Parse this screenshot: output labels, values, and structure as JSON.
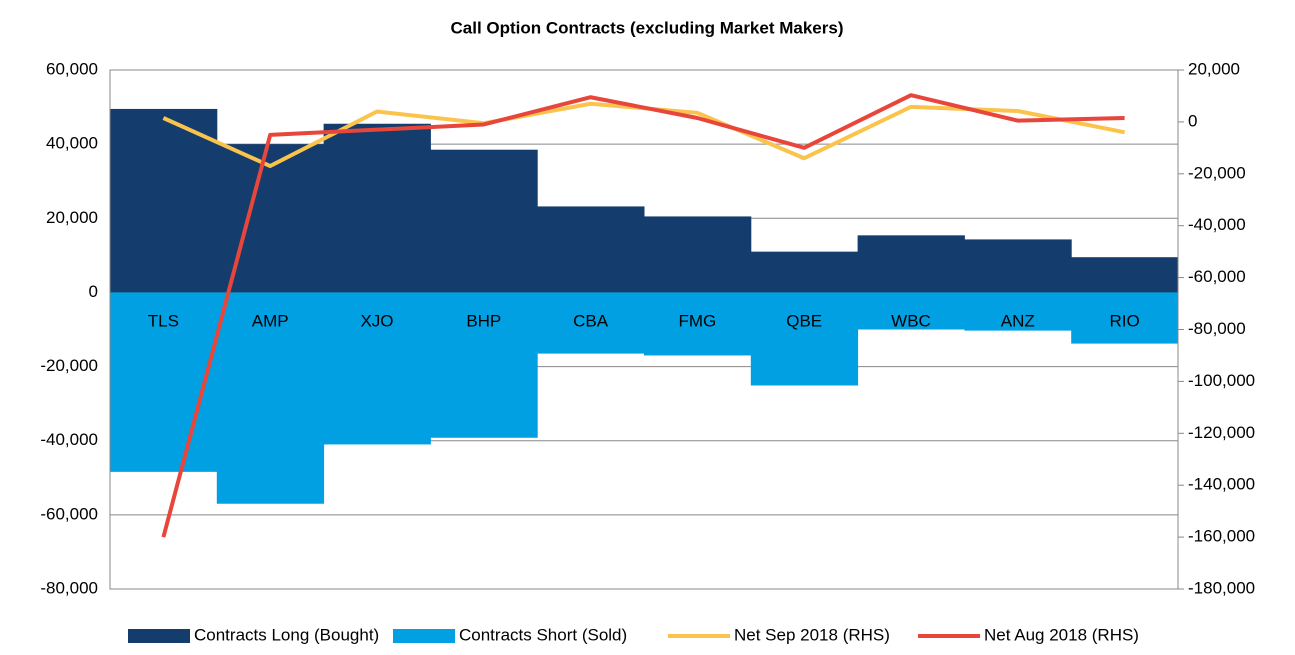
{
  "chart_data": {
    "type": "bar",
    "title": "Call Option Contracts (excluding Market Makers)",
    "categories": [
      "TLS",
      "AMP",
      "XJO",
      "BHP",
      "CBA",
      "FMG",
      "QBE",
      "WBC",
      "ANZ",
      "RIO"
    ],
    "series": [
      {
        "name": "Contracts Long (Bought)",
        "color": "#143c6c",
        "type": "bar",
        "values": [
          49500,
          40000,
          45500,
          38500,
          23200,
          20500,
          11000,
          15400,
          14300,
          9500
        ]
      },
      {
        "name": "Contracts Short (Sold)",
        "color": "#00a0e3",
        "type": "bar",
        "values": [
          -48400,
          -57000,
          -41000,
          -39200,
          -16500,
          -17000,
          -25100,
          -10000,
          -10300,
          -13800
        ]
      },
      {
        "name": "Net Sep 2018 (RHS)",
        "color": "#fbc34c",
        "type": "line",
        "axis": "y2",
        "values": [
          1500,
          -17000,
          4000,
          -500,
          7000,
          3500,
          -14000,
          5800,
          4200,
          -4000
        ]
      },
      {
        "name": "Net Aug 2018 (RHS)",
        "color": "#e8463a",
        "type": "line",
        "axis": "y2",
        "values": [
          -160000,
          -5000,
          -3000,
          -1000,
          9500,
          1500,
          -10000,
          10300,
          500,
          1500
        ]
      }
    ],
    "ylim": [
      -80000,
      60000
    ],
    "yticks": [
      {
        "value": -80000,
        "label": "-80,000"
      },
      {
        "value": -60000,
        "label": "-60,000"
      },
      {
        "value": -40000,
        "label": "-40,000"
      },
      {
        "value": -20000,
        "label": "-20,000"
      },
      0,
      {
        "value": 20000,
        "label": "20,000"
      },
      {
        "value": 40000,
        "label": "40,000"
      },
      {
        "value": 60000,
        "label": "60,000"
      }
    ],
    "y2lim": [
      -180000,
      20000
    ],
    "y2ticks": [
      {
        "value": -180000,
        "label": "-180,000"
      },
      {
        "value": -160000,
        "label": "-160,000"
      },
      {
        "value": -140000,
        "label": "-140,000"
      },
      {
        "value": -120000,
        "label": "-120,000"
      },
      {
        "value": -100000,
        "label": "-100,000"
      },
      {
        "value": -80000,
        "label": "-80,000"
      },
      {
        "value": -60000,
        "label": "-60,000"
      },
      {
        "value": -40000,
        "label": "-40,000"
      },
      {
        "value": -20000,
        "label": "-20,000"
      },
      0,
      {
        "value": 20000,
        "label": "20,000"
      }
    ],
    "grid": true,
    "legend": "bottom"
  }
}
